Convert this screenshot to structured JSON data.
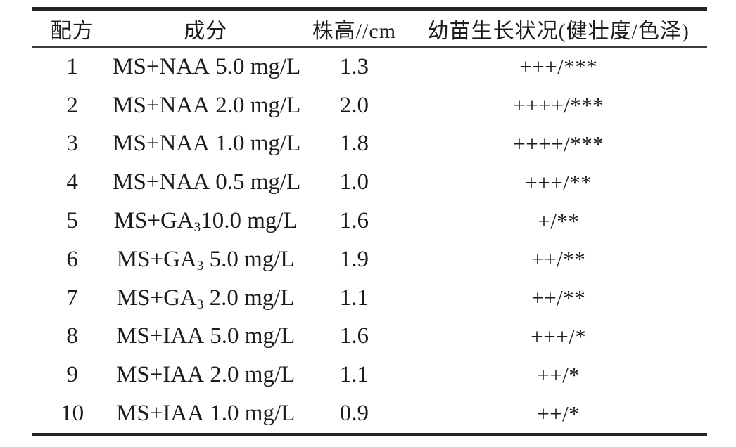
{
  "table": {
    "columns": [
      {
        "label": "配方"
      },
      {
        "label": "成分"
      },
      {
        "label": "株高//cm"
      },
      {
        "label": "幼苗生长状况(健壮度/色泽)"
      }
    ],
    "rows": [
      {
        "formula": "1",
        "component_pre": "MS+NAA",
        "component_sub": "",
        "component_post": " 5.0 mg/L",
        "height": "1.3",
        "status": "+++/***"
      },
      {
        "formula": "2",
        "component_pre": "MS+NAA",
        "component_sub": "",
        "component_post": " 2.0 mg/L",
        "height": "2.0",
        "status": "++++/***"
      },
      {
        "formula": "3",
        "component_pre": "MS+NAA",
        "component_sub": "",
        "component_post": " 1.0 mg/L",
        "height": "1.8",
        "status": "++++/***"
      },
      {
        "formula": "4",
        "component_pre": "MS+NAA",
        "component_sub": "",
        "component_post": " 0.5 mg/L",
        "height": "1.0",
        "status": "+++/**"
      },
      {
        "formula": "5",
        "component_pre": "MS+GA",
        "component_sub": "3",
        "component_post": "10.0 mg/L",
        "height": "1.6",
        "status": "+/**"
      },
      {
        "formula": "6",
        "component_pre": "MS+GA",
        "component_sub": "3",
        "component_post": " 5.0 mg/L",
        "height": "1.9",
        "status": "++/**"
      },
      {
        "formula": "7",
        "component_pre": "MS+GA",
        "component_sub": "3",
        "component_post": " 2.0 mg/L",
        "height": "1.1",
        "status": "++/**"
      },
      {
        "formula": "8",
        "component_pre": "MS+IAA",
        "component_sub": "",
        "component_post": " 5.0 mg/L",
        "height": "1.6",
        "status": "+++/*"
      },
      {
        "formula": "9",
        "component_pre": "MS+IAA",
        "component_sub": "",
        "component_post": " 2.0 mg/L",
        "height": "1.1",
        "status": "++/*"
      },
      {
        "formula": "10",
        "component_pre": "MS+IAA",
        "component_sub": "",
        "component_post": " 1.0 mg/L",
        "height": "0.9",
        "status": "++/*"
      }
    ]
  }
}
